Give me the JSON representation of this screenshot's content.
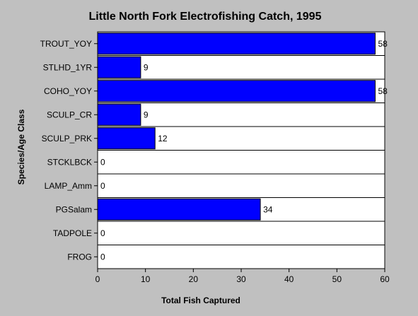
{
  "chart_data": {
    "type": "bar",
    "orientation": "horizontal",
    "title": "Little North Fork Electrofishing Catch, 1995",
    "xlabel": "Total Fish Captured",
    "ylabel": "Species/Age Class",
    "categories": [
      "TROUT_YOY",
      "STLHD_1YR",
      "COHO_YOY",
      "SCULP_CR",
      "SCULP_PRK",
      "STCKLBCK",
      "LAMP_Amm",
      "PGSalam",
      "TADPOLE",
      "FROG"
    ],
    "values": [
      58,
      9,
      58,
      9,
      12,
      0,
      0,
      34,
      0,
      0
    ],
    "xlim": [
      0,
      60
    ],
    "xticks": [
      0,
      10,
      20,
      30,
      40,
      50,
      60
    ],
    "grid": "horizontal-row-dividers",
    "bar_color": "#0000ff",
    "plot_background": "#ffffff",
    "background": "#c0c0c0"
  }
}
